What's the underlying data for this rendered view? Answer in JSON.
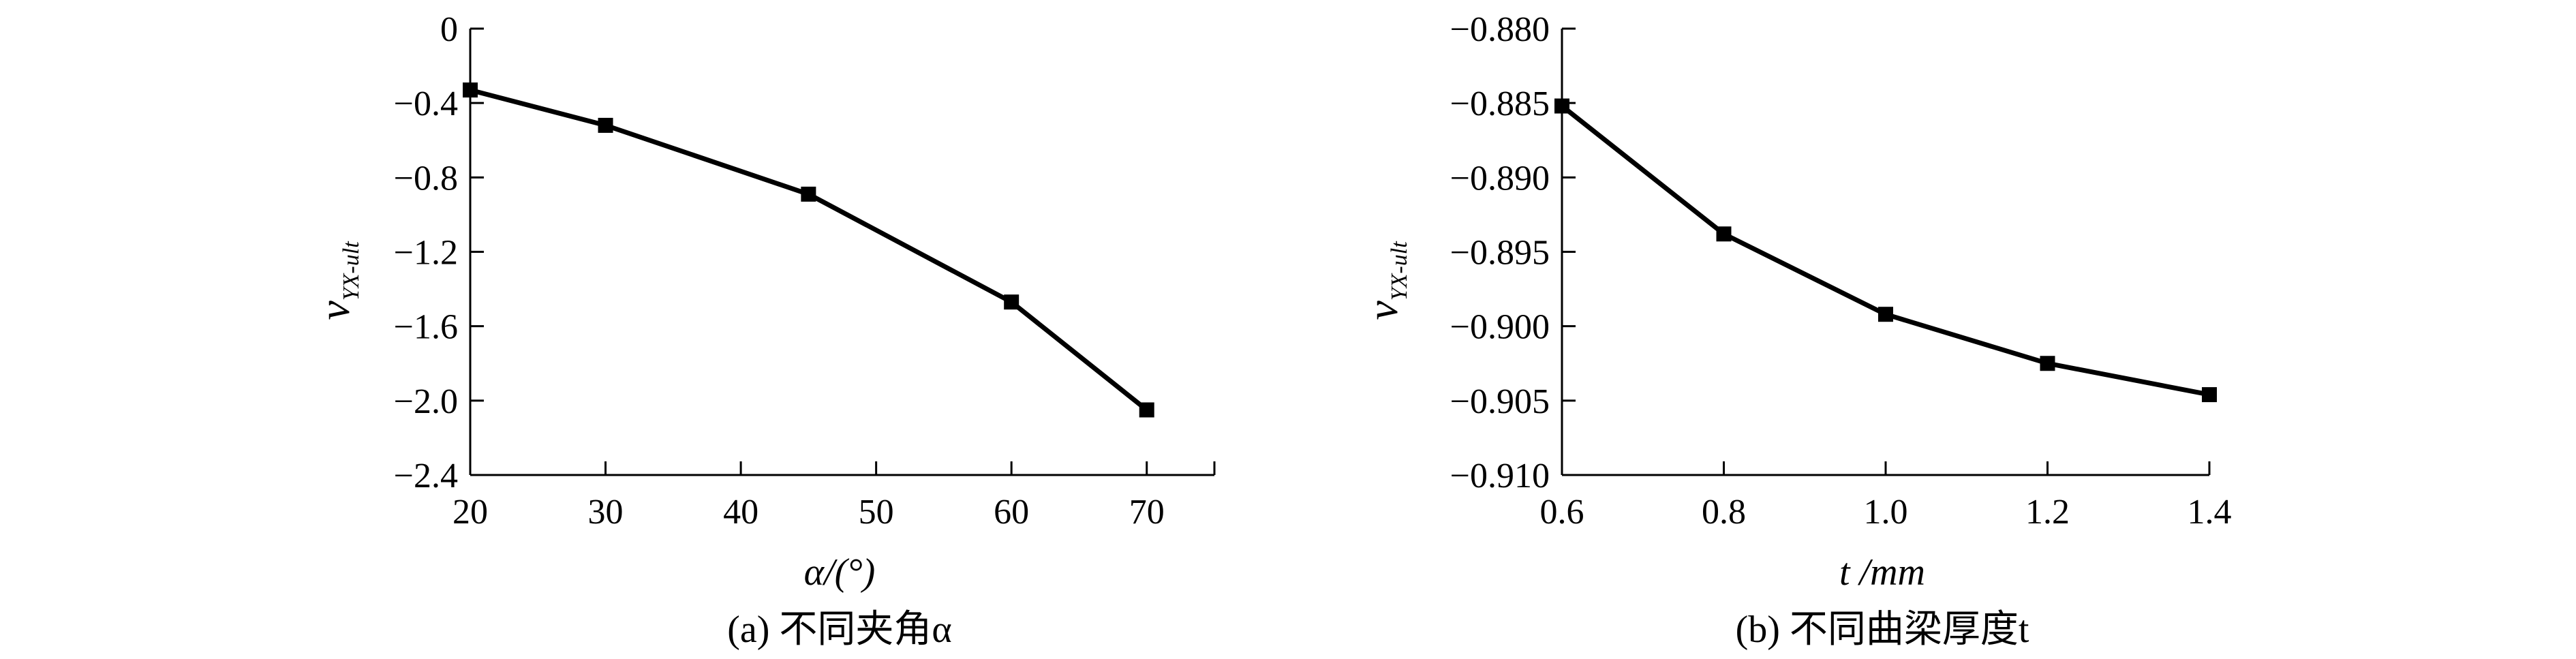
{
  "chart_data": [
    {
      "type": "line",
      "caption": "(a) 不同夹角α",
      "xlabel": "α/(°)",
      "ylabel": "ν_YX-ult",
      "ylabel_main": "ν",
      "ylabel_sub": "YX-ult",
      "xlim": [
        20,
        75
      ],
      "ylim": [
        -2.4,
        0
      ],
      "xticks": [
        20,
        30,
        40,
        50,
        60,
        70
      ],
      "xtick_labels": [
        "20",
        "30",
        "40",
        "50",
        "60",
        "70"
      ],
      "yticks": [
        0,
        -0.4,
        -0.8,
        -1.2,
        -1.6,
        -2.0,
        -2.4
      ],
      "ytick_labels": [
        "0",
        "−0.4",
        "−0.8",
        "−1.2",
        "−1.6",
        "−2.0",
        "−2.4"
      ],
      "x": [
        20,
        30,
        45,
        60,
        70
      ],
      "y": [
        -0.33,
        -0.52,
        -0.89,
        -1.47,
        -2.05
      ],
      "marker": "square",
      "grid": false
    },
    {
      "type": "line",
      "caption": "(b) 不同曲梁厚度t",
      "xlabel": "t /mm",
      "ylabel": "ν_YX-ult",
      "ylabel_main": "ν",
      "ylabel_sub": "YX-ult",
      "xlim": [
        0.6,
        1.4
      ],
      "ylim": [
        -0.91,
        -0.88
      ],
      "xticks": [
        0.6,
        0.8,
        1.0,
        1.2,
        1.4
      ],
      "xtick_labels": [
        "0.6",
        "0.8",
        "1.0",
        "1.2",
        "1.4"
      ],
      "yticks": [
        -0.88,
        -0.885,
        -0.89,
        -0.895,
        -0.9,
        -0.905,
        -0.91
      ],
      "ytick_labels": [
        "−0.880",
        "−0.885",
        "−0.890",
        "−0.895",
        "−0.900",
        "−0.905",
        "−0.910"
      ],
      "x": [
        0.6,
        0.8,
        1.0,
        1.2,
        1.4
      ],
      "y": [
        -0.8852,
        -0.8938,
        -0.8992,
        -0.9025,
        -0.9046
      ],
      "marker": "square",
      "grid": false
    }
  ]
}
